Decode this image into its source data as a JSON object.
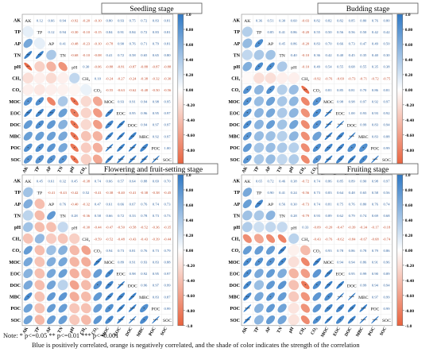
{
  "chart_data": [
    {
      "type": "heatmap",
      "title": "Seedling  stage",
      "variables": [
        "AK",
        "TP",
        "AP",
        "TN",
        "pH",
        "CH₄",
        "CO₂",
        "MOC",
        "EOC",
        "DOC",
        "MBC",
        "POC",
        "SOC"
      ],
      "correlations": [
        [
          1.0,
          0.12,
          0.66,
          0.94,
          -0.92,
          -0.2,
          -0.1,
          0.8,
          0.93,
          0.75,
          0.72,
          0.83,
          0.81
        ],
        [
          0.12,
          1.0,
          0.12,
          0.94,
          -0.3,
          -0.1,
          -0.15,
          0.84,
          0.91,
          0.84,
          0.72,
          0.83,
          0.81
        ],
        [
          0.66,
          0.12,
          1.0,
          0.41,
          -0.48,
          -0.23,
          -0.1,
          -0.78,
          0.9,
          0.76,
          0.71,
          0.79,
          0.81
        ],
        [
          0.94,
          0.94,
          0.41,
          1.0,
          -0.68,
          -0.1,
          -0.08,
          0.41,
          0.72,
          0.58,
          0.65,
          0.65,
          0.8
        ],
        [
          -0.92,
          -0.3,
          -0.48,
          -0.68,
          1.0,
          0.3,
          -0.06,
          -0.88,
          -0.81,
          -0.87,
          -0.88,
          -0.87,
          -0.88
        ],
        [
          -0.2,
          -0.1,
          -0.23,
          -0.1,
          0.3,
          1.0,
          0.1,
          -0.24,
          -0.27,
          -0.24,
          -0.38,
          -0.32,
          -0.3
        ],
        [
          -0.1,
          -0.15,
          -0.1,
          -0.08,
          -0.06,
          0.1,
          1.0,
          -0.55,
          -0.63,
          -0.62,
          -0.48,
          -0.5,
          -0.56
        ],
        [
          0.8,
          0.84,
          -0.78,
          0.41,
          -0.88,
          -0.24,
          -0.55,
          1.0,
          0.93,
          0.91,
          0.94,
          0.98,
          0.95
        ],
        [
          0.93,
          0.91,
          0.9,
          0.72,
          -0.81,
          -0.27,
          -0.63,
          0.93,
          1.0,
          0.95,
          0.96,
          0.95,
          0.97
        ],
        [
          0.75,
          0.84,
          0.76,
          0.58,
          -0.87,
          -0.24,
          -0.62,
          0.91,
          0.95,
          1.0,
          0.94,
          0.97,
          0.97
        ],
        [
          0.72,
          0.72,
          0.71,
          0.65,
          -0.88,
          -0.38,
          -0.48,
          0.94,
          0.96,
          0.94,
          1.0,
          0.92,
          0.97
        ],
        [
          0.83,
          0.83,
          0.79,
          0.65,
          -0.87,
          -0.32,
          -0.5,
          0.98,
          0.95,
          0.97,
          0.92,
          1.0,
          1.0
        ],
        [
          0.81,
          0.81,
          0.81,
          0.8,
          -0.88,
          -0.3,
          -0.56,
          0.95,
          0.97,
          0.97,
          0.97,
          1.0,
          1.0
        ]
      ],
      "colorbar_ticks": [
        "1.0",
        "0.80",
        "0.60",
        "0.40",
        "0.20",
        "0.00",
        "-0.20",
        "-0.40",
        "-0.60",
        "-0.80",
        "-1.0"
      ]
    },
    {
      "type": "heatmap",
      "title": "Budding stage",
      "variables": [
        "AK",
        "TP",
        "AP",
        "TN",
        "pH",
        "CH₄",
        "CO₂",
        "MOC",
        "EOC",
        "DOC",
        "MBC",
        "POC",
        "SOC"
      ],
      "correlations": [
        [
          1.0,
          0.36,
          0.51,
          0.3,
          0.6,
          -0.03,
          0.82,
          0.82,
          0.82,
          0.85,
          0.8,
          0.76,
          0.8
        ],
        [
          0.36,
          1.0,
          0.85,
          0.41,
          0.86,
          -0.2,
          0.55,
          0.5,
          0.56,
          0.56,
          0.5,
          0.42,
          0.42
        ],
        [
          0.51,
          0.85,
          1.0,
          0.45,
          0.86,
          -0.2,
          0.83,
          0.7,
          0.66,
          0.73,
          0.47,
          0.49,
          0.5
        ],
        [
          0.3,
          0.41,
          0.45,
          1.0,
          0.4,
          -0.1,
          0.36,
          0.42,
          0.4,
          0.45,
          0.35,
          0.4,
          0.3
        ],
        [
          0.6,
          0.86,
          0.86,
          0.4,
          1.0,
          -0.1,
          0.49,
          0.54,
          0.55,
          0.68,
          0.55,
          0.35,
          0.38
        ],
        [
          -0.03,
          -0.2,
          -0.2,
          -0.1,
          -0.1,
          1.0,
          -0.92,
          -0.76,
          -0.69,
          -0.73,
          -0.71,
          -0.72,
          -0.75
        ],
        [
          0.82,
          0.55,
          0.83,
          0.36,
          0.49,
          -0.92,
          1.0,
          0.81,
          0.85,
          0.81,
          0.7,
          0.86,
          0.81
        ],
        [
          0.82,
          0.5,
          0.7,
          0.42,
          0.54,
          -0.76,
          0.81,
          1.0,
          0.98,
          0.98,
          0.97,
          0.92,
          0.97
        ],
        [
          0.82,
          0.56,
          0.66,
          0.4,
          0.55,
          -0.69,
          0.85,
          0.98,
          1.0,
          1.0,
          0.93,
          0.93,
          0.92
        ],
        [
          0.85,
          0.56,
          0.73,
          0.45,
          0.68,
          -0.73,
          0.81,
          0.98,
          1.0,
          1.0,
          0.99,
          0.83,
          0.94
        ],
        [
          0.8,
          0.5,
          0.47,
          0.35,
          0.55,
          -0.71,
          0.7,
          0.97,
          0.93,
          0.99,
          1.0,
          0.83,
          0.88
        ],
        [
          0.76,
          0.42,
          0.49,
          0.4,
          0.35,
          -0.72,
          0.86,
          0.92,
          0.93,
          0.83,
          0.83,
          1.0,
          0.99
        ],
        [
          0.8,
          0.42,
          0.5,
          0.3,
          0.38,
          -0.75,
          0.81,
          0.97,
          0.92,
          0.94,
          0.88,
          0.99,
          1.0
        ]
      ],
      "colorbar_ticks": [
        "1.0",
        "0.80",
        "0.60",
        "0.40",
        "0.20",
        "0.00",
        "-0.20",
        "-0.40",
        "-0.60",
        "-0.80",
        "-1.0"
      ]
    },
    {
      "type": "heatmap",
      "title": "Flowering and fruit-setting stage",
      "variables": [
        "AK",
        "TP",
        "AP",
        "TN",
        "pH",
        "CH₄",
        "CO₂",
        "MOC",
        "EOC",
        "DOC",
        "MBC",
        "POC",
        "SOC"
      ],
      "correlations": [
        [
          1.0,
          0.45,
          0.61,
          0.32,
          0.45,
          -0.38,
          0.74,
          0.66,
          0.57,
          0.64,
          0.88,
          0.69,
          0.7
        ],
        [
          0.45,
          1.0,
          -0.41,
          -0.43,
          -0.42,
          0.52,
          -0.41,
          -0.38,
          -0.4,
          -0.41,
          -0.38,
          -0.38,
          -0.45
        ],
        [
          0.61,
          -0.41,
          1.0,
          0.76,
          -0.4,
          -0.32,
          0.47,
          0.61,
          0.66,
          0.67,
          0.76,
          0.74,
          0.73
        ],
        [
          0.32,
          -0.43,
          0.76,
          1.0,
          0.28,
          -0.36,
          0.58,
          0.66,
          0.72,
          0.33,
          0.78,
          0.73,
          0.73
        ],
        [
          0.45,
          -0.42,
          -0.4,
          0.28,
          1.0,
          -0.3,
          -0.44,
          -0.47,
          -0.5,
          -0.58,
          -0.52,
          -0.36,
          -0.35
        ],
        [
          -0.38,
          0.52,
          -0.32,
          -0.36,
          -0.3,
          1.0,
          -0.59,
          -0.52,
          -0.48,
          -0.43,
          -0.43,
          -0.39,
          -0.44
        ],
        [
          0.74,
          -0.41,
          0.47,
          0.58,
          -0.44,
          -0.59,
          1.0,
          0.94,
          0.73,
          0.81,
          0.76,
          0.73,
          0.79
        ],
        [
          0.66,
          -0.38,
          0.61,
          0.66,
          -0.47,
          -0.52,
          0.94,
          1.0,
          0.89,
          0.91,
          0.93,
          0.83,
          0.88
        ],
        [
          0.57,
          -0.4,
          0.66,
          0.72,
          -0.5,
          -0.48,
          0.73,
          0.89,
          1.0,
          0.98,
          0.92,
          0.95,
          0.97
        ],
        [
          0.64,
          -0.41,
          0.67,
          0.33,
          -0.58,
          -0.43,
          0.81,
          0.91,
          0.98,
          1.0,
          0.96,
          0.97,
          0.99
        ],
        [
          0.88,
          -0.38,
          0.76,
          0.78,
          -0.52,
          -0.43,
          0.76,
          0.93,
          0.92,
          0.96,
          1.0,
          0.83,
          0.87
        ],
        [
          0.69,
          -0.38,
          0.74,
          0.73,
          -0.36,
          -0.39,
          0.73,
          0.83,
          0.95,
          0.97,
          0.83,
          1.0,
          0.99
        ],
        [
          0.7,
          -0.45,
          0.73,
          0.73,
          -0.35,
          -0.44,
          0.79,
          0.88,
          0.97,
          0.99,
          0.87,
          0.99,
          1.0
        ]
      ],
      "colorbar_ticks": [
        "1.0",
        "0.80",
        "0.60",
        "0.40",
        "0.20",
        "0.00",
        "-0.20",
        "-0.40",
        "-0.60",
        "-0.80",
        "-1.0"
      ]
    },
    {
      "type": "heatmap",
      "title": "Fruiting stage",
      "variables": [
        "AK",
        "TP",
        "AP",
        "TN",
        "pH",
        "CH₄",
        "CO₂",
        "MOC",
        "EOC",
        "DOC",
        "MBC",
        "POC",
        "SOC"
      ],
      "correlations": [
        [
          1.0,
          0.65,
          0.72,
          0.46,
          0.38,
          -0.72,
          0.74,
          0.86,
          0.85,
          0.89,
          0.9,
          0.98,
          0.97
        ],
        [
          0.65,
          1.0,
          0.9,
          0.41,
          0.24,
          -0.56,
          0.73,
          0.83,
          0.64,
          0.48,
          0.65,
          0.58,
          0.56
        ],
        [
          0.72,
          0.9,
          1.0,
          0.56,
          0.3,
          -0.73,
          0.74,
          0.81,
          0.75,
          0.76,
          0.8,
          0.76,
          0.74
        ],
        [
          0.46,
          0.41,
          0.56,
          1.0,
          0.28,
          -0.79,
          0.93,
          0.89,
          0.62,
          0.79,
          0.74,
          0.69,
          0.68
        ],
        [
          0.38,
          0.24,
          0.3,
          0.28,
          1.0,
          0.33,
          -0.09,
          -0.2,
          -0.47,
          -0.39,
          -0.34,
          -0.17,
          -0.18
        ],
        [
          -0.72,
          -0.56,
          -0.73,
          -0.79,
          0.33,
          1.0,
          -0.43,
          -0.76,
          -0.62,
          -0.84,
          -0.67,
          -0.68,
          -0.74
        ],
        [
          0.74,
          0.73,
          0.74,
          0.93,
          -0.09,
          -0.43,
          1.0,
          0.93,
          0.78,
          0.86,
          0.78,
          0.79,
          0.86
        ],
        [
          0.86,
          0.83,
          0.81,
          0.89,
          -0.2,
          -0.76,
          0.93,
          1.0,
          0.94,
          0.94,
          0.86,
          0.91,
          0.96
        ],
        [
          0.85,
          0.64,
          0.75,
          0.62,
          -0.47,
          -0.62,
          0.78,
          0.94,
          1.0,
          0.95,
          0.99,
          0.9,
          0.89
        ],
        [
          0.89,
          0.48,
          0.76,
          0.79,
          -0.39,
          -0.84,
          0.86,
          0.94,
          0.95,
          1.0,
          0.99,
          0.94,
          0.94
        ],
        [
          0.9,
          0.65,
          0.8,
          0.74,
          -0.34,
          -0.67,
          0.78,
          0.86,
          0.99,
          0.99,
          1.0,
          0.97,
          0.99
        ],
        [
          0.98,
          0.58,
          0.76,
          0.69,
          -0.17,
          -0.68,
          0.79,
          0.91,
          0.9,
          0.94,
          0.97,
          1.0,
          0.99
        ],
        [
          0.97,
          0.56,
          0.74,
          0.68,
          -0.18,
          -0.74,
          0.86,
          0.96,
          0.89,
          0.94,
          0.99,
          0.99,
          1.0
        ]
      ],
      "colorbar_ticks": [
        "1.0",
        "0.80",
        "0.60",
        "0.40",
        "0.20",
        "0.00",
        "-0.20",
        "-0.40",
        "-0.60",
        "-0.80",
        "-1.0"
      ]
    }
  ],
  "colors": {
    "positive": "#2f79c5",
    "negative": "#e8613c",
    "neutral": "#ffffff"
  },
  "note": {
    "line1": "Note:  * p<=0.05  ** p<=0.01  *** p<=0.001",
    "line2": "Blue is positively correlated, orange is negatively correlated, and the shade of color indicates the strength of the correlation"
  }
}
